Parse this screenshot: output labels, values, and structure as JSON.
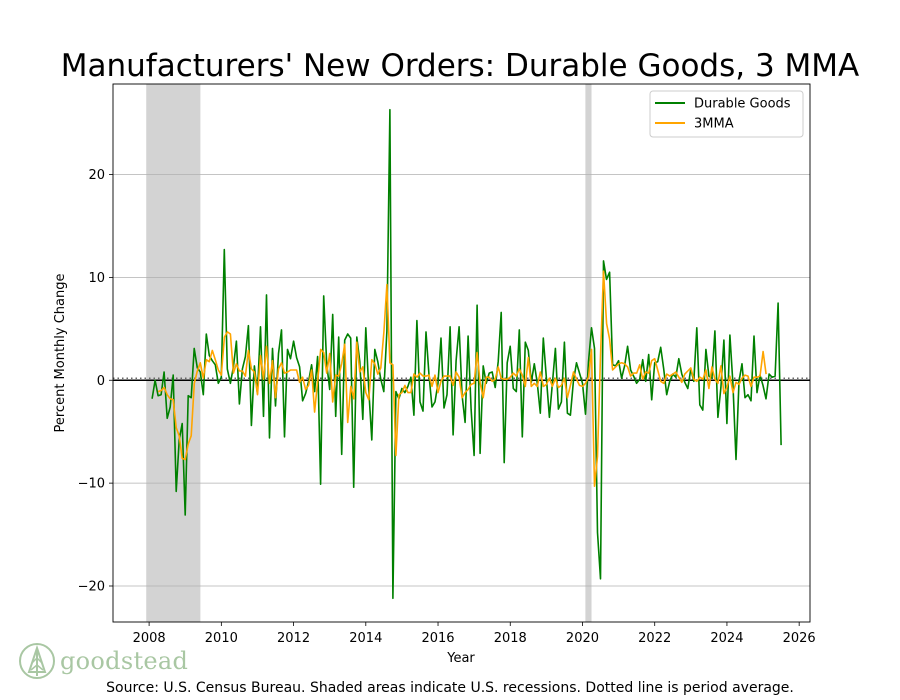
{
  "chart_data": {
    "type": "line",
    "title": "Manufacturers' New Orders: Durable Goods, 3 MMA",
    "xlabel": "Year",
    "ylabel": "Percent Monthly Change",
    "xlim": [
      2007.0,
      2026.3
    ],
    "ylim": [
      -23.5,
      28.8
    ],
    "xticks": [
      2008,
      2010,
      2012,
      2014,
      2016,
      2018,
      2020,
      2022,
      2024,
      2026
    ],
    "yticks": [
      -20,
      -10,
      0,
      10,
      20
    ],
    "ytick_labels": [
      "−20",
      "−10",
      "0",
      "10",
      "20"
    ],
    "grid": "horizontal",
    "legend": "top-right",
    "zero_line": 0,
    "period_average": 0.2,
    "recessions": [
      [
        2007.92,
        2009.42
      ],
      [
        2020.08,
        2020.25
      ]
    ],
    "series": [
      {
        "name": "Durable Goods",
        "color": "#008000",
        "start": 2008.083,
        "step": 0.0833333,
        "values": [
          -1.8,
          0.0,
          -1.5,
          -1.4,
          0.8,
          -3.7,
          -2.6,
          0.5,
          -10.8,
          -5.8,
          -4.2,
          -13.1,
          -1.5,
          -1.7,
          3.1,
          1.2,
          0.8,
          -1.4,
          4.5,
          2.4,
          1.9,
          1.5,
          -0.3,
          0.3,
          12.7,
          1.1,
          -0.3,
          1.3,
          3.8,
          -2.3,
          1.1,
          2.3,
          5.3,
          -4.4,
          1.4,
          -1.3,
          5.2,
          -3.5,
          8.3,
          -5.6,
          3.1,
          -2.5,
          2.6,
          4.9,
          -5.5,
          3.0,
          2.1,
          3.8,
          2.2,
          1.3,
          -2.0,
          -1.3,
          -0.1,
          1.5,
          -1.1,
          2.3,
          -10.1,
          8.2,
          1.6,
          -0.9,
          6.4,
          -3.5,
          4.2,
          -7.2,
          3.9,
          4.5,
          4.1,
          -10.4,
          4.2,
          1.8,
          -3.8,
          5.1,
          -1.0,
          -5.8,
          3.0,
          1.8,
          0.1,
          -1.1,
          4.8,
          26.3,
          -21.2,
          -1.1,
          -1.8,
          -0.8,
          -1.2,
          -0.6,
          0.3,
          -3.4,
          5.8,
          -2.1,
          -3.0,
          4.7,
          0.5,
          -2.6,
          -2.1,
          -0.3,
          4.1,
          -2.7,
          -1.4,
          5.2,
          -5.3,
          1.9,
          5.2,
          -1.5,
          -4.1,
          4.3,
          -2.8,
          -7.3,
          7.3,
          -7.1,
          1.4,
          -0.3,
          0.7,
          0.8,
          -0.7,
          1.8,
          6.6,
          -8.0,
          1.7,
          3.3,
          -0.8,
          -1.1,
          4.9,
          -5.5,
          3.7,
          2.9,
          -0.2,
          1.6,
          -0.3,
          -3.2,
          4.1,
          0.2,
          -3.6,
          -0.3,
          3.1,
          -2.8,
          -2.1,
          3.7,
          -3.2,
          -3.4,
          -0.1,
          1.7,
          0.7,
          -0.3,
          -3.3,
          1.8,
          5.1,
          3.1,
          -14.8,
          -19.3,
          11.6,
          9.8,
          10.5,
          1.5,
          1.4,
          1.9,
          0.2,
          1.4,
          3.3,
          1.0,
          0.4,
          -0.3,
          0.1,
          2.0,
          -0.1,
          2.5,
          -1.9,
          1.7,
          1.8,
          3.2,
          1.1,
          -1.4,
          -0.1,
          0.6,
          0.3,
          2.1,
          0.6,
          -0.2,
          -0.8,
          1.1,
          -0.1,
          5.1,
          -2.4,
          -2.9,
          3.0,
          0.4,
          0.2,
          4.8,
          -3.6,
          -0.7,
          3.9,
          -4.2,
          4.4,
          -0.3,
          -7.7,
          -0.1,
          1.6,
          -1.7,
          -1.4,
          -2.0,
          4.3,
          -1.2,
          0.5,
          -0.5,
          -1.8,
          0.6,
          0.3,
          0.4,
          7.5,
          -6.3
        ]
      },
      {
        "name": "3MMA",
        "color": "#ffa500",
        "start": 2008.25,
        "step": 0.0833333,
        "values": [
          -1.1,
          -1.0,
          -0.7,
          -1.4,
          -1.8,
          -1.9,
          -4.6,
          -5.4,
          -7.6,
          -7.7,
          -6.2,
          -5.4,
          -0.3,
          0.9,
          1.7,
          0.2,
          2.0,
          1.8,
          2.9,
          2.0,
          1.0,
          0.5,
          4.2,
          4.7,
          4.5,
          0.7,
          1.6,
          0.9,
          0.9,
          0.4,
          2.9,
          1.1,
          0.8,
          -1.4,
          2.4,
          0.1,
          3.3,
          -0.3,
          1.9,
          -1.7,
          1.1,
          1.7,
          0.7,
          0.8,
          1.0,
          1.0,
          1.0,
          -0.2,
          0.3,
          -0.9,
          -0.5,
          1.0,
          -3.1,
          -0.1,
          3.0,
          2.7,
          0.7,
          2.6,
          -2.1,
          0.5,
          0.4,
          1.6,
          3.5,
          -4.1,
          -0.6,
          -1.8,
          3.7,
          0.8,
          1.3,
          -1.2,
          -1.9,
          2.0,
          1.6,
          0.6,
          1.2,
          4.7,
          9.3,
          1.7,
          1.5,
          -7.3,
          -1.4,
          -1.2,
          -0.5,
          -1.2,
          -1.2,
          0.6,
          0.3,
          0.7,
          0.4,
          0.4,
          0.5,
          -0.6,
          0.5,
          -1.2,
          -0.1,
          0.4,
          0.4,
          0.4,
          -0.5,
          0.8,
          0.3,
          -1.7,
          -1.2,
          -0.9,
          -0.4,
          -0.3,
          2.7,
          -0.3,
          -1.7,
          0.3,
          0.3,
          -0.1,
          0.1,
          1.3,
          0.2,
          0.1,
          0.1,
          0.3,
          0.7,
          0.4,
          1.1,
          0.5,
          -0.6,
          2.2,
          -0.6,
          -0.3,
          -0.6,
          0.8,
          -0.6,
          -0.4,
          0.2,
          -0.6,
          0.2,
          -0.7,
          -0.5,
          0.2,
          -1.7,
          -0.5,
          0.8,
          0.1,
          -0.5,
          -0.6,
          -0.3,
          0.3,
          3.0,
          -10.3,
          -7.4,
          2.4,
          10.6,
          5.5,
          4.0,
          1.0,
          1.3,
          1.6,
          1.7,
          1.6,
          1.3,
          0.4,
          0.7,
          0.7,
          1.5,
          0.1,
          0.8,
          0.7,
          1.9,
          2.1,
          1.0,
          -0.1,
          -0.3,
          0.6,
          0.4,
          0.6,
          0.8,
          0.3,
          -0.2,
          0.6,
          0.9,
          1.2,
          0.1,
          -0.1,
          0.3,
          0.1,
          1.0,
          -0.8,
          1.3,
          0.1,
          -0.3,
          1.4,
          -1.3,
          -0.7,
          0.4,
          -1.2,
          -0.2,
          -0.4,
          0.2,
          0.5,
          0.4,
          -0.6,
          0.3,
          0.3,
          0.4,
          2.8,
          0.6
        ]
      }
    ]
  },
  "source_text": "Source: U.S. Census Bureau. Shaded areas indicate U.S. recessions. Dotted line is period average.",
  "logo": {
    "text": "goodstead",
    "icon": "pine-tree-icon"
  }
}
